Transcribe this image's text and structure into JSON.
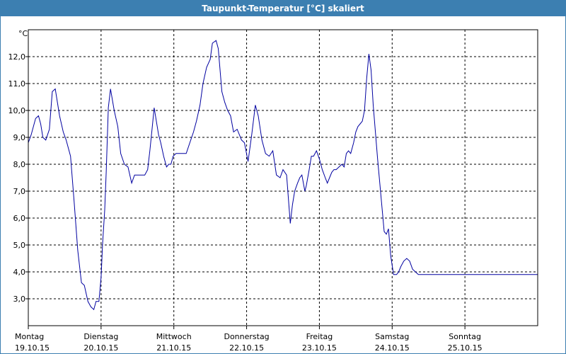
{
  "colors": {
    "titlebar": "#3c7fb1",
    "line": "#0000a0",
    "grid": "#000000",
    "background": "#ffffff"
  },
  "chart_data": {
    "type": "line",
    "title": "Taupunkt-Temperatur [°C] skaliert",
    "ylabel": "°C",
    "xlabel": "",
    "grid": true,
    "ylim": [
      2.0,
      13.0
    ],
    "yticks": [
      "3,0",
      "4,0",
      "5,0",
      "6,0",
      "7,0",
      "8,0",
      "9,0",
      "10,0",
      "11,0",
      "12,0"
    ],
    "xlim": [
      0,
      7
    ],
    "xticks": [
      {
        "day": "Montag",
        "date": "19.10.15"
      },
      {
        "day": "Dienstag",
        "date": "20.10.15"
      },
      {
        "day": "Mittwoch",
        "date": "21.10.15"
      },
      {
        "day": "Donnerstag",
        "date": "22.10.15"
      },
      {
        "day": "Freitag",
        "date": "23.10.15"
      },
      {
        "day": "Samstag",
        "date": "24.10.15"
      },
      {
        "day": "Sonntag",
        "date": "25.10.15"
      }
    ],
    "series": [
      {
        "x": [
          0.0,
          0.04,
          0.1,
          0.14,
          0.17,
          0.2,
          0.24,
          0.29,
          0.33,
          0.37,
          0.43,
          0.48,
          0.52,
          0.58,
          0.63,
          0.68,
          0.73,
          0.77,
          0.82,
          0.86,
          0.9,
          0.93,
          0.97,
          1.0,
          1.02,
          1.05,
          1.07,
          1.1,
          1.13,
          1.18,
          1.23,
          1.27,
          1.32,
          1.37,
          1.42,
          1.46,
          1.5,
          1.53,
          1.56,
          1.6,
          1.64,
          1.67,
          1.7,
          1.73,
          1.76,
          1.79,
          1.82,
          1.86,
          1.9,
          1.93,
          1.96,
          1.99,
          2.03,
          2.07,
          2.12,
          2.17,
          2.22,
          2.27,
          2.31,
          2.36,
          2.4,
          2.45,
          2.5,
          2.53,
          2.58,
          2.61,
          2.66,
          2.7,
          2.74,
          2.78,
          2.82,
          2.87,
          2.93,
          2.97,
          3.02,
          3.07,
          3.12,
          3.16,
          3.21,
          3.26,
          3.31,
          3.36,
          3.41,
          3.46,
          3.5,
          3.55,
          3.6,
          3.63,
          3.66,
          3.7,
          3.73,
          3.76,
          3.8,
          3.82,
          3.86,
          3.89,
          3.92,
          3.96,
          4.0,
          4.04,
          4.08,
          4.11,
          4.14,
          4.17,
          4.2,
          4.23,
          4.27,
          4.31,
          4.34,
          4.37,
          4.4,
          4.43,
          4.47,
          4.5,
          4.53,
          4.56,
          4.59,
          4.62,
          4.65,
          4.68,
          4.71,
          4.74,
          4.77,
          4.8,
          4.83,
          4.86,
          4.89,
          4.92,
          4.95,
          4.98,
          5.02,
          5.06,
          5.09,
          5.12,
          5.16,
          5.2,
          5.24,
          5.28,
          5.32,
          5.36,
          5.4,
          5.44,
          5.48,
          5.53,
          5.58,
          5.62,
          5.67,
          5.72,
          5.77,
          5.82,
          5.87,
          5.93,
          5.98,
          6.02,
          6.07,
          6.12,
          6.16,
          6.21,
          6.25,
          6.3,
          6.33,
          6.36,
          6.39,
          6.42,
          6.46,
          6.5,
          6.54,
          6.57,
          6.6,
          6.62,
          6.65,
          6.7,
          6.75,
          6.79,
          6.82,
          6.86,
          6.89,
          6.92,
          6.96,
          7.0
        ],
        "values": [
          8.8,
          9.1,
          9.7,
          9.8,
          9.5,
          9.0,
          8.9,
          9.3,
          10.7,
          10.8,
          9.8,
          9.2,
          8.9,
          8.3,
          6.6,
          4.8,
          3.6,
          3.5,
          2.9,
          2.7,
          2.6,
          2.9,
          2.9,
          3.8,
          5.0,
          6.3,
          7.7,
          10.1,
          10.8,
          10.0,
          9.4,
          8.4,
          8.0,
          7.9,
          7.3,
          7.6,
          7.6,
          7.6,
          7.6,
          7.6,
          7.8,
          8.5,
          9.3,
          10.1,
          9.6,
          9.1,
          8.8,
          8.3,
          7.9,
          8.0,
          8.0,
          8.3,
          8.4,
          8.4,
          8.4,
          8.4,
          8.8,
          9.2,
          9.6,
          10.2,
          11.0,
          11.6,
          11.9,
          12.5,
          12.6,
          12.3,
          10.7,
          10.3,
          10.0,
          9.8,
          9.2,
          9.3,
          8.9,
          8.8,
          8.1,
          9.1,
          10.2,
          9.8,
          8.9,
          8.4,
          8.3,
          8.5,
          7.6,
          7.5,
          7.8,
          7.6,
          5.8,
          6.5,
          7.0,
          7.3,
          7.5,
          7.6,
          7.0,
          7.2,
          7.8,
          8.3,
          8.3,
          8.5,
          8.2,
          7.8,
          7.5,
          7.3,
          7.5,
          7.7,
          7.8,
          7.8,
          7.9,
          8.0,
          7.9,
          8.4,
          8.5,
          8.4,
          8.8,
          9.2,
          9.4,
          9.5,
          9.6,
          10.0,
          11.2,
          12.1,
          11.5,
          10.2,
          9.2,
          8.2,
          7.3,
          6.4,
          5.5,
          5.4,
          5.6,
          4.6,
          3.9,
          3.9,
          4.0,
          4.2,
          4.4,
          4.5,
          4.4,
          4.1,
          4.0,
          3.9,
          3.9,
          3.9,
          3.9,
          3.9,
          3.9,
          3.9,
          3.9,
          3.9,
          3.9,
          3.9,
          3.9,
          3.9,
          3.9,
          3.9,
          3.9,
          3.9,
          3.9,
          3.9,
          3.9,
          3.9,
          3.9,
          3.9,
          3.9,
          3.9,
          3.9,
          3.9,
          3.9,
          3.9,
          3.9,
          3.9,
          3.9,
          3.9,
          3.9,
          3.9,
          3.9,
          3.9,
          3.9,
          3.9,
          3.9,
          3.9
        ]
      }
    ]
  }
}
